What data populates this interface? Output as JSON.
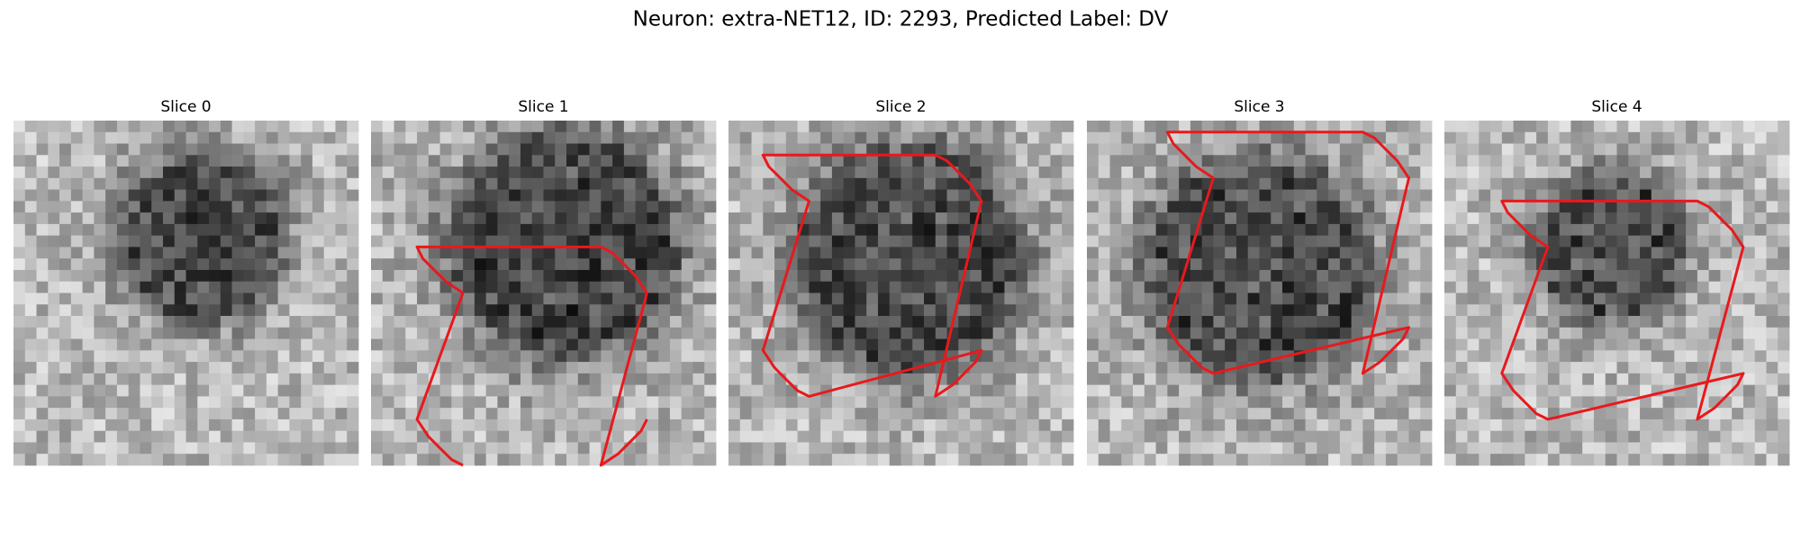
{
  "title": "Neuron: extra-NET12, ID: 2293, Predicted Label: DV",
  "panels": [
    {
      "title": "Slice 0"
    },
    {
      "title": "Slice 1"
    },
    {
      "title": "Slice 2"
    },
    {
      "title": "Slice 3"
    },
    {
      "title": "Slice 4"
    }
  ]
}
